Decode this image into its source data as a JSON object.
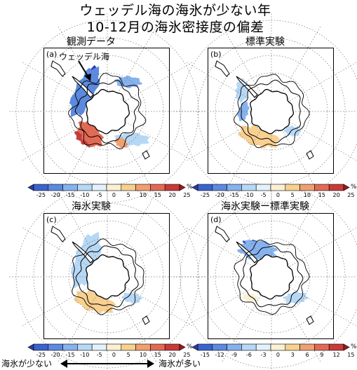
{
  "title_line1": "ウェッデル海の海氷が少ない年",
  "title_line2": "10-12月の海氷密接度の偏差",
  "panels": {
    "a": {
      "title": "観測データ",
      "label": "(a)",
      "annotation": "ウェッデル海"
    },
    "b": {
      "title": "標準実験",
      "label": "(b)"
    },
    "c": {
      "title": "海氷実験",
      "label": "(c)"
    },
    "d": {
      "title": "海氷実験ー標準実験",
      "label": "(d)"
    }
  },
  "colorbar_main": {
    "ticks": [
      "-25",
      "-20",
      "-15",
      "-10",
      "-5",
      "0",
      "5",
      "10",
      "15",
      "20",
      "25"
    ],
    "unit": "%",
    "colors": [
      "#2b3ea8",
      "#3a63cc",
      "#5b8ae0",
      "#86b2ee",
      "#b6d8f5",
      "#e3f1fb",
      "#fbf0d2",
      "#f8d090",
      "#f0a070",
      "#e26a55",
      "#c83a3a",
      "#9e1a1f"
    ]
  },
  "colorbar_diff": {
    "ticks": [
      "-15",
      "-12",
      "-9",
      "-6",
      "-3",
      "0",
      "3",
      "6",
      "9",
      "12",
      "15"
    ],
    "unit": "%",
    "colors": [
      "#2b3ea8",
      "#3a63cc",
      "#5b8ae0",
      "#86b2ee",
      "#b6d8f5",
      "#e3f1fb",
      "#fbf0d2",
      "#f8d090",
      "#f0a070",
      "#e26a55",
      "#c83a3a",
      "#9e1a1f"
    ]
  },
  "bottom_axis": {
    "left": "海氷が少ない",
    "right": "海氷が多い"
  }
}
